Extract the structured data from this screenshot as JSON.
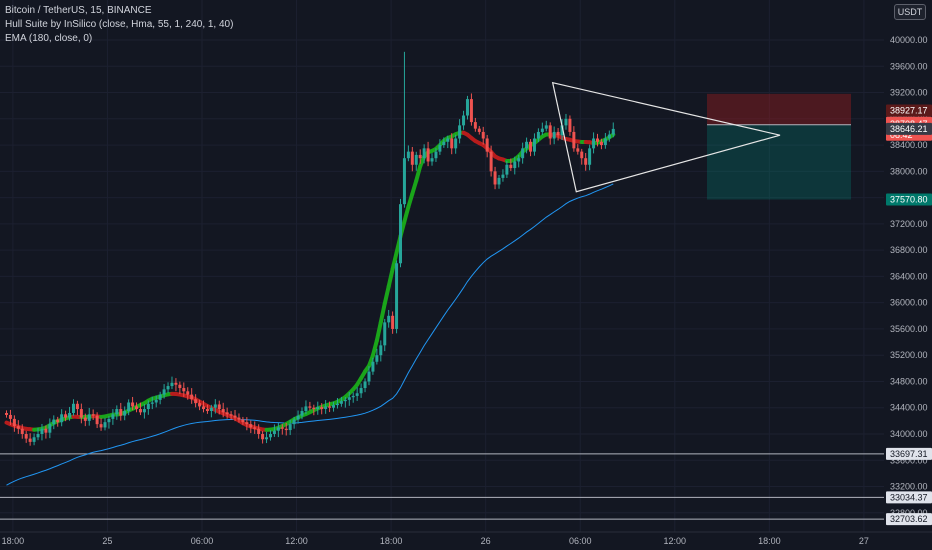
{
  "legend": {
    "symbol": "Bitcoin / TetherUS, 15, BINANCE",
    "indicator1": "Hull Suite by InSilico (close, Hma, 55, 1, 240, 1, 40)",
    "indicator2": "EMA (180, close, 0)"
  },
  "unit": "USDT",
  "colors": {
    "background": "#131722",
    "up": "#26a69a",
    "down": "#ef5350",
    "hull_up": "#1aa51a",
    "hull_down": "#b71c1c",
    "ema": "#2196f3",
    "hline": "#b2b5be"
  },
  "chart_data": {
    "type": "candlestick",
    "title": "Bitcoin / TetherUS, 15, BINANCE",
    "ylim": [
      32600,
      40600
    ],
    "y_ticks": [
      40000,
      39600,
      39200,
      38800,
      38400,
      38000,
      37600,
      37200,
      36800,
      36400,
      36000,
      35600,
      35200,
      34800,
      34400,
      34000,
      33600,
      33200,
      32800
    ],
    "x_ticks": [
      {
        "label": "18:00",
        "slot": 2
      },
      {
        "label": "25",
        "slot": 26
      },
      {
        "label": "06:00",
        "slot": 50
      },
      {
        "label": "12:00",
        "slot": 74
      },
      {
        "label": "18:00",
        "slot": 98
      },
      {
        "label": "26",
        "slot": 122
      },
      {
        "label": "06:00",
        "slot": 146
      },
      {
        "label": "12:00",
        "slot": 170
      },
      {
        "label": "18:00",
        "slot": 194
      },
      {
        "label": "27",
        "slot": 218
      }
    ],
    "closes": [
      34290,
      34230,
      34120,
      34080,
      34000,
      33930,
      33880,
      33950,
      34000,
      34080,
      34020,
      34150,
      34220,
      34180,
      34300,
      34250,
      34320,
      34460,
      34380,
      34250,
      34200,
      34300,
      34280,
      34150,
      34100,
      34180,
      34230,
      34300,
      34380,
      34280,
      34350,
      34480,
      34420,
      34380,
      34330,
      34380,
      34460,
      34480,
      34520,
      34600,
      34680,
      34730,
      34780,
      34750,
      34700,
      34650,
      34600,
      34530,
      34470,
      34420,
      34380,
      34350,
      34400,
      34450,
      34380,
      34330,
      34300,
      34280,
      34250,
      34220,
      34180,
      34150,
      34100,
      34080,
      34000,
      33920,
      33950,
      34000,
      34050,
      34100,
      34080,
      34060,
      34150,
      34220,
      34280,
      34350,
      34420,
      34400,
      34380,
      34410,
      34380,
      34420,
      34400,
      34440,
      34460,
      34500,
      34520,
      34560,
      34580,
      34620,
      34700,
      34800,
      34950,
      35100,
      35200,
      35350,
      35700,
      35800,
      35600,
      36600,
      37500,
      38200,
      38300,
      38100,
      38250,
      38200,
      38350,
      38150,
      38200,
      38300,
      38400,
      38450,
      38500,
      38350,
      38500,
      38700,
      38850,
      39100,
      38750,
      38650,
      38600,
      38500,
      38300,
      38000,
      37800,
      37900,
      37950,
      38100,
      38050,
      38150,
      38200,
      38350,
      38450,
      38300,
      38500,
      38600,
      38650,
      38700,
      38500,
      38600,
      38550,
      38700,
      38800,
      38600,
      38350,
      38300,
      38200,
      38100,
      38350,
      38500,
      38450,
      38400,
      38500,
      38560,
      38646
    ]
  },
  "price_tags": {
    "current": "38646.21",
    "upper": "38927.17",
    "mid_price": "38708.47",
    "countdown": "08:42",
    "lower": "37570.80",
    "hline1": "33697.31",
    "hline2": "33034.37",
    "hline3": "32703.62"
  },
  "levels": {
    "current": 38646.21,
    "upper": 38927.17,
    "mid_price": 38708.47,
    "lower": 37570.8,
    "hline1": 33697.31,
    "hline2": 33034.37,
    "hline3": 32703.62
  }
}
